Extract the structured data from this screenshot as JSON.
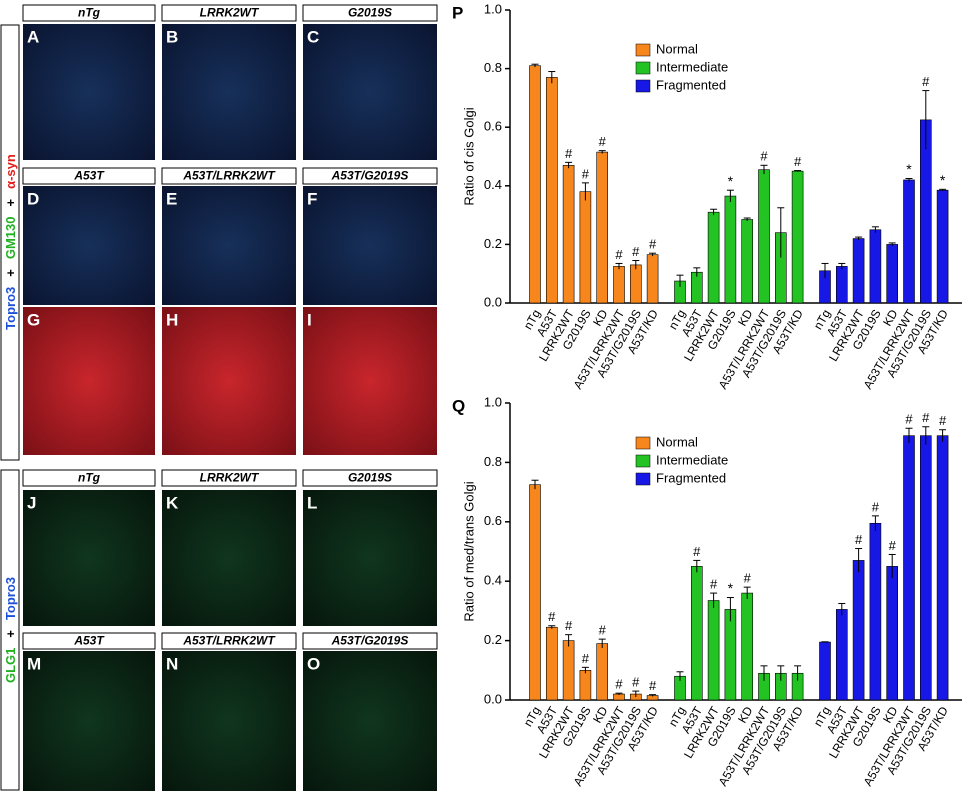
{
  "panels": [
    {
      "letter": "A",
      "title": "nTg"
    },
    {
      "letter": "B",
      "title": "LRRK2WT"
    },
    {
      "letter": "C",
      "title": "G2019S"
    },
    {
      "letter": "D",
      "title": "A53T"
    },
    {
      "letter": "E",
      "title": "A53T/LRRK2WT"
    },
    {
      "letter": "F",
      "title": "A53T/G2019S"
    },
    {
      "letter": "G",
      "title": null
    },
    {
      "letter": "H",
      "title": null
    },
    {
      "letter": "I",
      "title": null
    },
    {
      "letter": "J",
      "title": "nTg"
    },
    {
      "letter": "K",
      "title": "LRRK2WT"
    },
    {
      "letter": "L",
      "title": "G2019S"
    },
    {
      "letter": "M",
      "title": "A53T"
    },
    {
      "letter": "N",
      "title": "A53T/LRRK2WT"
    },
    {
      "letter": "O",
      "title": "A53T/G2019S"
    }
  ],
  "side_labels_top": [
    {
      "text": "Topro3",
      "color": "#1e4fd8"
    },
    {
      "text": "+",
      "color": "#000000"
    },
    {
      "text": "GM130",
      "color": "#22b022"
    },
    {
      "text": "+",
      "color": "#000000"
    },
    {
      "text": "α-syn",
      "color": "#e0201c"
    }
  ],
  "side_labels_bottom": [
    {
      "text": "GLG1",
      "color": "#22b022"
    },
    {
      "text": "+",
      "color": "#000000"
    },
    {
      "text": "Topro3",
      "color": "#1e4fd8"
    }
  ],
  "chart_data": [
    {
      "type": "bar",
      "panel": "P",
      "ylabel": "Ratio of cis Golgi",
      "categories": [
        "nTg",
        "A53T",
        "LRRK2WT",
        "G2019S",
        "KD",
        "A53T/LRRK2WT",
        "A53T/G2019S",
        "A53T/KD"
      ],
      "ylim": [
        0,
        1
      ],
      "yticks": [
        {
          "value": 0,
          "label": "0.0"
        },
        {
          "value": 0.2,
          "label": "0.2"
        },
        {
          "value": 0.4,
          "label": "0.4"
        },
        {
          "value": 0.6,
          "label": "0.6"
        },
        {
          "value": 0.8,
          "label": "0.8"
        },
        {
          "value": 1,
          "label": "1.0"
        }
      ],
      "series": [
        {
          "name": "Normal",
          "color": "#f7861c",
          "values": [
            0.81,
            0.77,
            0.47,
            0.38,
            0.515,
            0.125,
            0.13,
            0.165
          ],
          "errors": [
            0.005,
            0.02,
            0.01,
            0.03,
            0.005,
            0.01,
            0.015,
            0.005
          ],
          "markers": [
            null,
            null,
            "#",
            "#",
            "#",
            "#",
            "#",
            "#"
          ]
        },
        {
          "name": "Intermediate",
          "color": "#22c322",
          "values": [
            0.075,
            0.105,
            0.31,
            0.365,
            0.285,
            0.455,
            0.24,
            0.45
          ],
          "errors": [
            0.02,
            0.015,
            0.01,
            0.02,
            0.005,
            0.015,
            0.085,
            0.002
          ],
          "markers": [
            null,
            null,
            null,
            "*",
            null,
            "#",
            null,
            "#"
          ]
        },
        {
          "name": "Fragmented",
          "color": "#1818e6",
          "values": [
            0.11,
            0.125,
            0.22,
            0.25,
            0.2,
            0.42,
            0.625,
            0.385
          ],
          "errors": [
            0.025,
            0.01,
            0.005,
            0.01,
            0.005,
            0.005,
            0.1,
            0.003
          ],
          "markers": [
            null,
            null,
            null,
            null,
            null,
            "*",
            "#",
            "*"
          ]
        }
      ]
    },
    {
      "type": "bar",
      "panel": "Q",
      "ylabel": "Ratio of med/trans Golgi",
      "categories": [
        "nTg",
        "A53T",
        "LRRK2WT",
        "G2019S",
        "KD",
        "A53T/LRRK2WT",
        "A53T/G2019S",
        "A53T/KD"
      ],
      "ylim": [
        0,
        1
      ],
      "yticks": [
        {
          "value": 0,
          "label": "0.0"
        },
        {
          "value": 0.2,
          "label": "0.2"
        },
        {
          "value": 0.4,
          "label": "0.4"
        },
        {
          "value": 0.6,
          "label": "0.6"
        },
        {
          "value": 0.8,
          "label": "0.8"
        },
        {
          "value": 1,
          "label": "1.0"
        }
      ],
      "series": [
        {
          "name": "Normal",
          "color": "#f7861c",
          "values": [
            0.725,
            0.245,
            0.2,
            0.1,
            0.19,
            0.02,
            0.02,
            0.015
          ],
          "errors": [
            0.015,
            0.005,
            0.02,
            0.01,
            0.015,
            0.003,
            0.01,
            0.003
          ],
          "markers": [
            null,
            "#",
            "#",
            "#",
            "#",
            "#",
            "#",
            "#"
          ]
        },
        {
          "name": "Intermediate",
          "color": "#22c322",
          "values": [
            0.08,
            0.45,
            0.335,
            0.305,
            0.36,
            0.09,
            0.09,
            0.09
          ],
          "errors": [
            0.015,
            0.02,
            0.025,
            0.04,
            0.02,
            0.025,
            0.025,
            0.025
          ],
          "markers": [
            null,
            "#",
            "#",
            "*",
            "#",
            null,
            null,
            null
          ]
        },
        {
          "name": "Fragmented",
          "color": "#1818e6",
          "values": [
            0.195,
            0.305,
            0.47,
            0.595,
            0.45,
            0.89,
            0.89,
            0.89
          ],
          "errors": [
            0.001,
            0.02,
            0.04,
            0.025,
            0.04,
            0.025,
            0.03,
            0.02
          ],
          "markers": [
            null,
            null,
            "#",
            "#",
            "#",
            "#",
            "#",
            "#"
          ]
        }
      ]
    }
  ]
}
